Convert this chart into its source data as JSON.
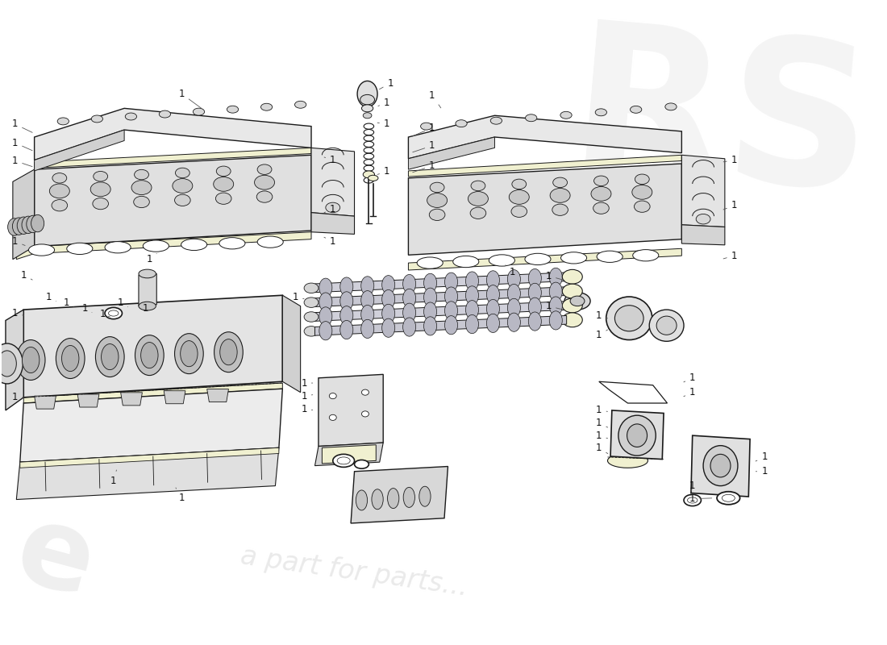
{
  "background_color": "#ffffff",
  "line_color": "#1a1a1a",
  "gasket_color": "#f0f0d0",
  "light_fill": "#f0f0f0",
  "mid_fill": "#e0e0e0",
  "dark_fill": "#c8c8c8",
  "label_color": "#111111",
  "watermark_rs_color": "#e8e8e8",
  "watermark_e_color": "#e0e0e0",
  "watermark_parts_color": "#dcdcdc",
  "label_fs": 8.5,
  "rs_text": "RS",
  "e_text": "e",
  "parts_text": "a part for parts...",
  "fig_width": 11.0,
  "fig_height": 8.0,
  "dpi": 100
}
